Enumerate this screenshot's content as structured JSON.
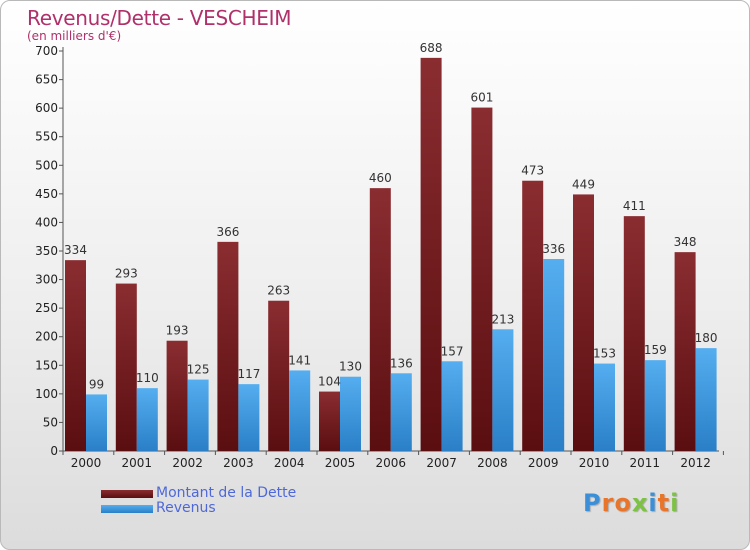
{
  "colors": {
    "debt": "#6b1b1e",
    "revenue": "#3b95dc",
    "title": "#b0306a",
    "legend_text": "#4f68d8"
  },
  "header": {
    "title": "Revenus/Dette - VESCHEIM",
    "unit": "(en milliers d'€)"
  },
  "legend": {
    "debt_label": "Montant de la Dette",
    "revenue_label": "Revenus"
  },
  "logo": {
    "text": "Proxiti"
  },
  "chart_data": {
    "type": "bar",
    "title": "Revenus/Dette - VESCHEIM",
    "xlabel": "",
    "ylabel": "(en milliers d'€)",
    "ylim": [
      0,
      700
    ],
    "yticks": [
      0,
      50,
      100,
      150,
      200,
      250,
      300,
      350,
      400,
      450,
      500,
      550,
      600,
      650,
      700
    ],
    "grid": false,
    "legend_position": "bottom-left",
    "categories": [
      "2000",
      "2001",
      "2002",
      "2003",
      "2004",
      "2005",
      "2006",
      "2007",
      "2008",
      "2009",
      "2010",
      "2011",
      "2012"
    ],
    "series": [
      {
        "name": "Montant de la Dette",
        "values": [
          334,
          293,
          193,
          366,
          263,
          104,
          460,
          688,
          601,
          473,
          449,
          411,
          348
        ]
      },
      {
        "name": "Revenus",
        "values": [
          99,
          110,
          125,
          117,
          141,
          130,
          136,
          157,
          213,
          336,
          153,
          159,
          180
        ]
      }
    ]
  }
}
